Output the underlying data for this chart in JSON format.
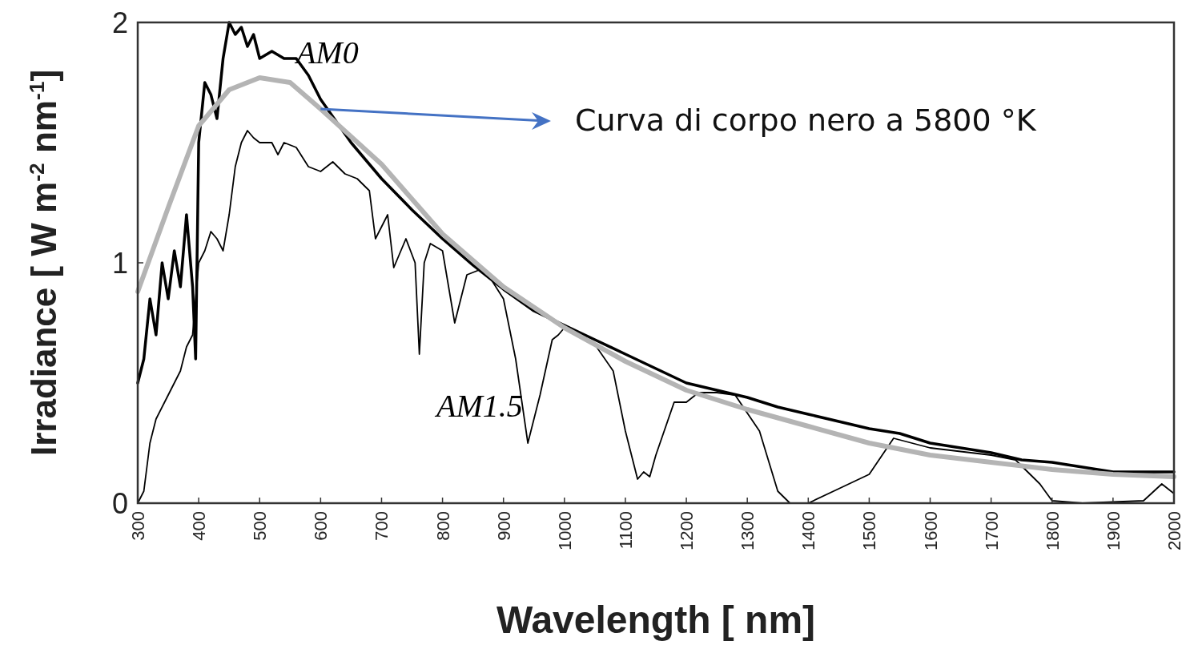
{
  "chart_data": {
    "type": "line",
    "xlabel": "Wavelength [ nm]",
    "ylabel": "Irradiance [ W m$^{-2}$ nm$^{-1}$]",
    "xlim": [
      300,
      2000
    ],
    "ylim": [
      0,
      2
    ],
    "xticks": [
      300,
      400,
      500,
      600,
      700,
      800,
      900,
      1000,
      1100,
      1200,
      1300,
      1400,
      1500,
      1600,
      1700,
      1800,
      1900,
      2000
    ],
    "yticks": [
      0,
      1,
      2
    ],
    "grid": false,
    "line_style": "solid",
    "series": [
      {
        "name": "AM0",
        "color": "#000000",
        "x": [
          300,
          310,
          320,
          330,
          340,
          350,
          360,
          370,
          380,
          390,
          395,
          400,
          410,
          420,
          430,
          440,
          450,
          460,
          470,
          480,
          490,
          500,
          520,
          540,
          560,
          580,
          600,
          650,
          700,
          750,
          800,
          850,
          900,
          950,
          1000,
          1050,
          1100,
          1150,
          1200,
          1250,
          1300,
          1350,
          1400,
          1450,
          1500,
          1550,
          1600,
          1650,
          1700,
          1750,
          1800,
          1850,
          1900,
          1950,
          2000
        ],
        "values": [
          0.5,
          0.6,
          0.85,
          0.7,
          1.0,
          0.85,
          1.05,
          0.9,
          1.2,
          0.9,
          0.6,
          1.5,
          1.75,
          1.7,
          1.6,
          1.85,
          2.0,
          1.95,
          1.98,
          1.9,
          1.95,
          1.85,
          1.88,
          1.85,
          1.85,
          1.78,
          1.68,
          1.5,
          1.35,
          1.22,
          1.1,
          0.99,
          0.89,
          0.8,
          0.74,
          0.68,
          0.62,
          0.56,
          0.5,
          0.47,
          0.44,
          0.4,
          0.37,
          0.34,
          0.31,
          0.29,
          0.25,
          0.23,
          0.21,
          0.18,
          0.17,
          0.15,
          0.13,
          0.13,
          0.13
        ]
      },
      {
        "name": "AM1.5",
        "color": "#000000",
        "x": [
          300,
          310,
          320,
          330,
          350,
          370,
          380,
          390,
          400,
          410,
          420,
          430,
          440,
          450,
          460,
          470,
          480,
          490,
          500,
          520,
          530,
          540,
          560,
          580,
          600,
          620,
          640,
          660,
          680,
          690,
          700,
          710,
          720,
          740,
          755,
          762,
          770,
          780,
          800,
          820,
          840,
          860,
          880,
          900,
          920,
          940,
          960,
          980,
          990,
          1000,
          1050,
          1080,
          1100,
          1120,
          1130,
          1140,
          1150,
          1180,
          1200,
          1220,
          1250,
          1280,
          1320,
          1350,
          1370,
          1400,
          1450,
          1500,
          1540,
          1600,
          1700,
          1740,
          1780,
          1800,
          1850,
          1950,
          1980,
          2000
        ],
        "values": [
          0,
          0.05,
          0.25,
          0.35,
          0.45,
          0.55,
          0.65,
          0.7,
          1.0,
          1.05,
          1.13,
          1.1,
          1.05,
          1.2,
          1.4,
          1.5,
          1.55,
          1.52,
          1.5,
          1.5,
          1.45,
          1.5,
          1.48,
          1.4,
          1.38,
          1.42,
          1.37,
          1.35,
          1.3,
          1.1,
          1.15,
          1.2,
          0.98,
          1.1,
          1.0,
          0.62,
          1.0,
          1.08,
          1.05,
          0.75,
          0.95,
          0.97,
          0.93,
          0.85,
          0.6,
          0.25,
          0.45,
          0.68,
          0.7,
          0.73,
          0.66,
          0.55,
          0.3,
          0.1,
          0.13,
          0.11,
          0.2,
          0.42,
          0.42,
          0.46,
          0.46,
          0.45,
          0.3,
          0.05,
          0,
          0,
          0.06,
          0.12,
          0.27,
          0.23,
          0.2,
          0.18,
          0.08,
          0.01,
          0,
          0.01,
          0.08,
          0.04
        ]
      },
      {
        "color": "#b4b4b4",
        "x": [
          300,
          350,
          400,
          450,
          500,
          550,
          600,
          700,
          800,
          900,
          1000,
          1100,
          1200,
          1300,
          1400,
          1500,
          1600,
          1700,
          1800,
          1900,
          2000
        ],
        "values": [
          0.88,
          1.23,
          1.57,
          1.72,
          1.77,
          1.75,
          1.64,
          1.41,
          1.12,
          0.9,
          0.73,
          0.59,
          0.47,
          0.39,
          0.32,
          0.25,
          0.2,
          0.17,
          0.14,
          0.12,
          0.11
        ]
      }
    ],
    "annotations": [
      {
        "text": "Curva di corpo nero a 5800 °K",
        "x": 600,
        "y": 1.64
      }
    ]
  }
}
